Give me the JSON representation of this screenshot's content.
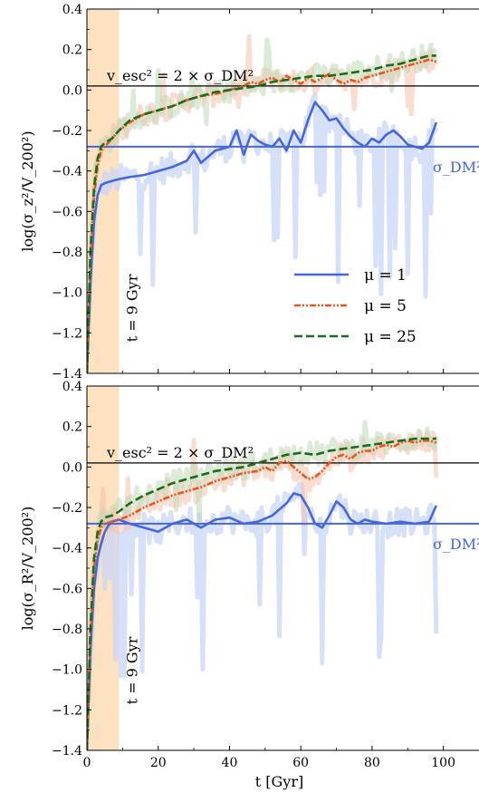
{
  "chart_data": [
    {
      "type": "line",
      "ylabel": "log(σ_z²/V_200²)",
      "xlim": [
        0,
        110
      ],
      "ylim": [
        -1.4,
        0.4
      ],
      "yticks": [
        -1.4,
        -1.2,
        -1.0,
        -0.8,
        -0.6,
        -0.4,
        -0.2,
        0.0,
        0.2,
        0.4
      ],
      "ytick_labels": [
        "−1.4",
        "−1.2",
        "−1.0",
        "−0.8",
        "−0.6",
        "−0.4",
        "−0.2",
        "0.0",
        "0.2",
        "0.4"
      ],
      "shade_span": [
        0,
        9
      ],
      "hlines": [
        {
          "y": 0.02,
          "color": "#000000",
          "label": "v_esc² = 2 × σ_DM²"
        },
        {
          "y": -0.28,
          "color": "#4466e0",
          "label": "σ_DM²"
        }
      ],
      "vline_label": "t = 9 Gyr",
      "legend": {
        "placement": "center-right",
        "entries": [
          {
            "label": "μ = 1",
            "color": "#4466e0",
            "dash": "solid"
          },
          {
            "label": "μ = 5",
            "color": "#e8561a",
            "dash": "dashdotdot"
          },
          {
            "label": "μ = 25",
            "color": "#1a6b1a",
            "dash": "dashed"
          }
        ]
      },
      "series": [
        {
          "name": "μ = 1",
          "color": "#4466e0",
          "x": [
            0,
            1,
            2,
            3,
            4,
            5,
            7,
            9,
            12,
            16,
            20,
            24,
            28,
            30,
            32,
            36,
            40,
            42,
            44,
            46,
            48,
            50,
            52,
            54,
            56,
            58,
            60,
            62,
            64,
            66,
            68,
            70,
            72,
            74,
            76,
            78,
            80,
            82,
            84,
            86,
            88,
            90,
            92,
            94,
            96,
            98
          ],
          "y": [
            -1.4,
            -0.95,
            -0.65,
            -0.52,
            -0.47,
            -0.46,
            -0.45,
            -0.44,
            -0.43,
            -0.42,
            -0.4,
            -0.38,
            -0.35,
            -0.3,
            -0.36,
            -0.3,
            -0.28,
            -0.2,
            -0.32,
            -0.22,
            -0.25,
            -0.27,
            -0.28,
            -0.24,
            -0.3,
            -0.2,
            -0.26,
            -0.15,
            -0.06,
            -0.1,
            -0.15,
            -0.14,
            -0.19,
            -0.23,
            -0.26,
            -0.28,
            -0.24,
            -0.26,
            -0.22,
            -0.2,
            -0.23,
            -0.27,
            -0.28,
            -0.29,
            -0.26,
            -0.16
          ]
        },
        {
          "name": "μ = 5",
          "color": "#e8561a",
          "x": [
            0,
            1,
            2,
            3,
            4,
            5,
            7,
            9,
            12,
            16,
            20,
            24,
            28,
            32,
            36,
            40,
            44,
            46,
            48,
            50,
            52,
            54,
            56,
            58,
            60,
            62,
            64,
            66,
            68,
            70,
            72,
            74,
            76,
            78,
            80,
            82,
            84,
            86,
            88,
            90,
            92,
            94,
            96,
            98
          ],
          "y": [
            -1.4,
            -0.85,
            -0.52,
            -0.38,
            -0.3,
            -0.28,
            -0.24,
            -0.2,
            -0.16,
            -0.12,
            -0.1,
            -0.08,
            -0.05,
            -0.03,
            -0.02,
            0.0,
            0.02,
            0.04,
            0.03,
            0.05,
            0.06,
            0.04,
            0.07,
            0.05,
            0.03,
            0.06,
            0.04,
            0.06,
            0.08,
            0.05,
            0.03,
            0.05,
            0.04,
            0.06,
            0.07,
            0.08,
            0.09,
            0.1,
            0.11,
            0.12,
            0.13,
            0.14,
            0.15,
            0.14
          ]
        },
        {
          "name": "μ = 25",
          "color": "#1a6b1a",
          "x": [
            0,
            1,
            2,
            3,
            4,
            5,
            7,
            9,
            12,
            16,
            20,
            24,
            28,
            32,
            36,
            40,
            44,
            48,
            52,
            56,
            60,
            64,
            68,
            72,
            76,
            80,
            84,
            88,
            92,
            96,
            98
          ],
          "y": [
            -1.4,
            -0.8,
            -0.48,
            -0.34,
            -0.28,
            -0.26,
            -0.24,
            -0.2,
            -0.15,
            -0.12,
            -0.1,
            -0.08,
            -0.05,
            -0.03,
            -0.01,
            0.0,
            0.01,
            0.02,
            0.04,
            0.05,
            0.06,
            0.07,
            0.07,
            0.08,
            0.09,
            0.1,
            0.12,
            0.13,
            0.15,
            0.17,
            0.17
          ]
        }
      ]
    },
    {
      "type": "line",
      "xlabel": "t [Gyr]",
      "ylabel": "log(σ_R²/V_200²)",
      "xlim": [
        0,
        110
      ],
      "ylim": [
        -1.4,
        0.4
      ],
      "xticks": [
        0,
        20,
        40,
        60,
        80,
        100
      ],
      "xtick_labels": [
        "0",
        "20",
        "40",
        "60",
        "80",
        "100"
      ],
      "yticks": [
        -1.4,
        -1.2,
        -1.0,
        -0.8,
        -0.6,
        -0.4,
        -0.2,
        0.0,
        0.2,
        0.4
      ],
      "ytick_labels": [
        "−1.4",
        "−1.2",
        "−1.0",
        "−0.8",
        "−0.6",
        "−0.4",
        "−0.2",
        "0.0",
        "0.2",
        "0.4"
      ],
      "shade_span": [
        0,
        9
      ],
      "hlines": [
        {
          "y": 0.02,
          "color": "#000000",
          "label": "v_esc² = 2 × σ_DM²"
        },
        {
          "y": -0.28,
          "color": "#4466e0",
          "label": "σ_DM²"
        }
      ],
      "vline_label": "t = 9 Gyr",
      "series": [
        {
          "name": "μ = 1",
          "color": "#4466e0",
          "x": [
            0,
            1,
            2,
            3,
            4,
            5,
            6,
            7,
            9,
            12,
            16,
            20,
            24,
            28,
            32,
            36,
            40,
            44,
            48,
            52,
            56,
            58,
            60,
            62,
            64,
            66,
            68,
            70,
            72,
            74,
            76,
            78,
            80,
            84,
            88,
            92,
            96,
            98
          ],
          "y": [
            -1.4,
            -0.9,
            -0.6,
            -0.45,
            -0.38,
            -0.32,
            -0.29,
            -0.27,
            -0.26,
            -0.28,
            -0.3,
            -0.32,
            -0.28,
            -0.26,
            -0.3,
            -0.26,
            -0.25,
            -0.28,
            -0.27,
            -0.24,
            -0.18,
            -0.13,
            -0.14,
            -0.2,
            -0.28,
            -0.3,
            -0.24,
            -0.17,
            -0.2,
            -0.26,
            -0.28,
            -0.26,
            -0.27,
            -0.28,
            -0.27,
            -0.28,
            -0.27,
            -0.19
          ]
        },
        {
          "name": "μ = 5",
          "color": "#e8561a",
          "x": [
            0,
            1,
            2,
            3,
            4,
            5,
            7,
            9,
            12,
            16,
            20,
            24,
            28,
            32,
            36,
            40,
            44,
            48,
            50,
            52,
            54,
            56,
            58,
            60,
            62,
            64,
            66,
            68,
            70,
            72,
            74,
            76,
            78,
            80,
            82,
            84,
            86,
            88,
            90,
            92,
            94,
            96,
            98
          ],
          "y": [
            -1.4,
            -0.85,
            -0.5,
            -0.36,
            -0.3,
            -0.28,
            -0.27,
            -0.26,
            -0.24,
            -0.2,
            -0.17,
            -0.14,
            -0.12,
            -0.1,
            -0.07,
            -0.05,
            -0.03,
            -0.02,
            0.0,
            -0.02,
            0.02,
            0.03,
            0.0,
            -0.03,
            -0.06,
            -0.05,
            -0.02,
            0.02,
            0.05,
            0.06,
            0.04,
            0.07,
            0.08,
            0.08,
            0.1,
            0.11,
            0.1,
            0.12,
            0.13,
            0.12,
            0.13,
            0.13,
            0.12
          ]
        },
        {
          "name": "μ = 25",
          "color": "#1a6b1a",
          "x": [
            0,
            1,
            2,
            3,
            4,
            5,
            7,
            9,
            12,
            16,
            20,
            24,
            28,
            32,
            36,
            40,
            44,
            48,
            52,
            56,
            60,
            64,
            68,
            72,
            76,
            80,
            84,
            88,
            92,
            96,
            98
          ],
          "y": [
            -1.4,
            -0.8,
            -0.45,
            -0.32,
            -0.27,
            -0.25,
            -0.24,
            -0.22,
            -0.18,
            -0.14,
            -0.11,
            -0.08,
            -0.06,
            -0.04,
            -0.02,
            -0.01,
            0.0,
            0.02,
            0.04,
            0.06,
            0.07,
            0.06,
            0.08,
            0.09,
            0.1,
            0.11,
            0.12,
            0.13,
            0.14,
            0.14,
            0.14
          ]
        }
      ]
    }
  ]
}
